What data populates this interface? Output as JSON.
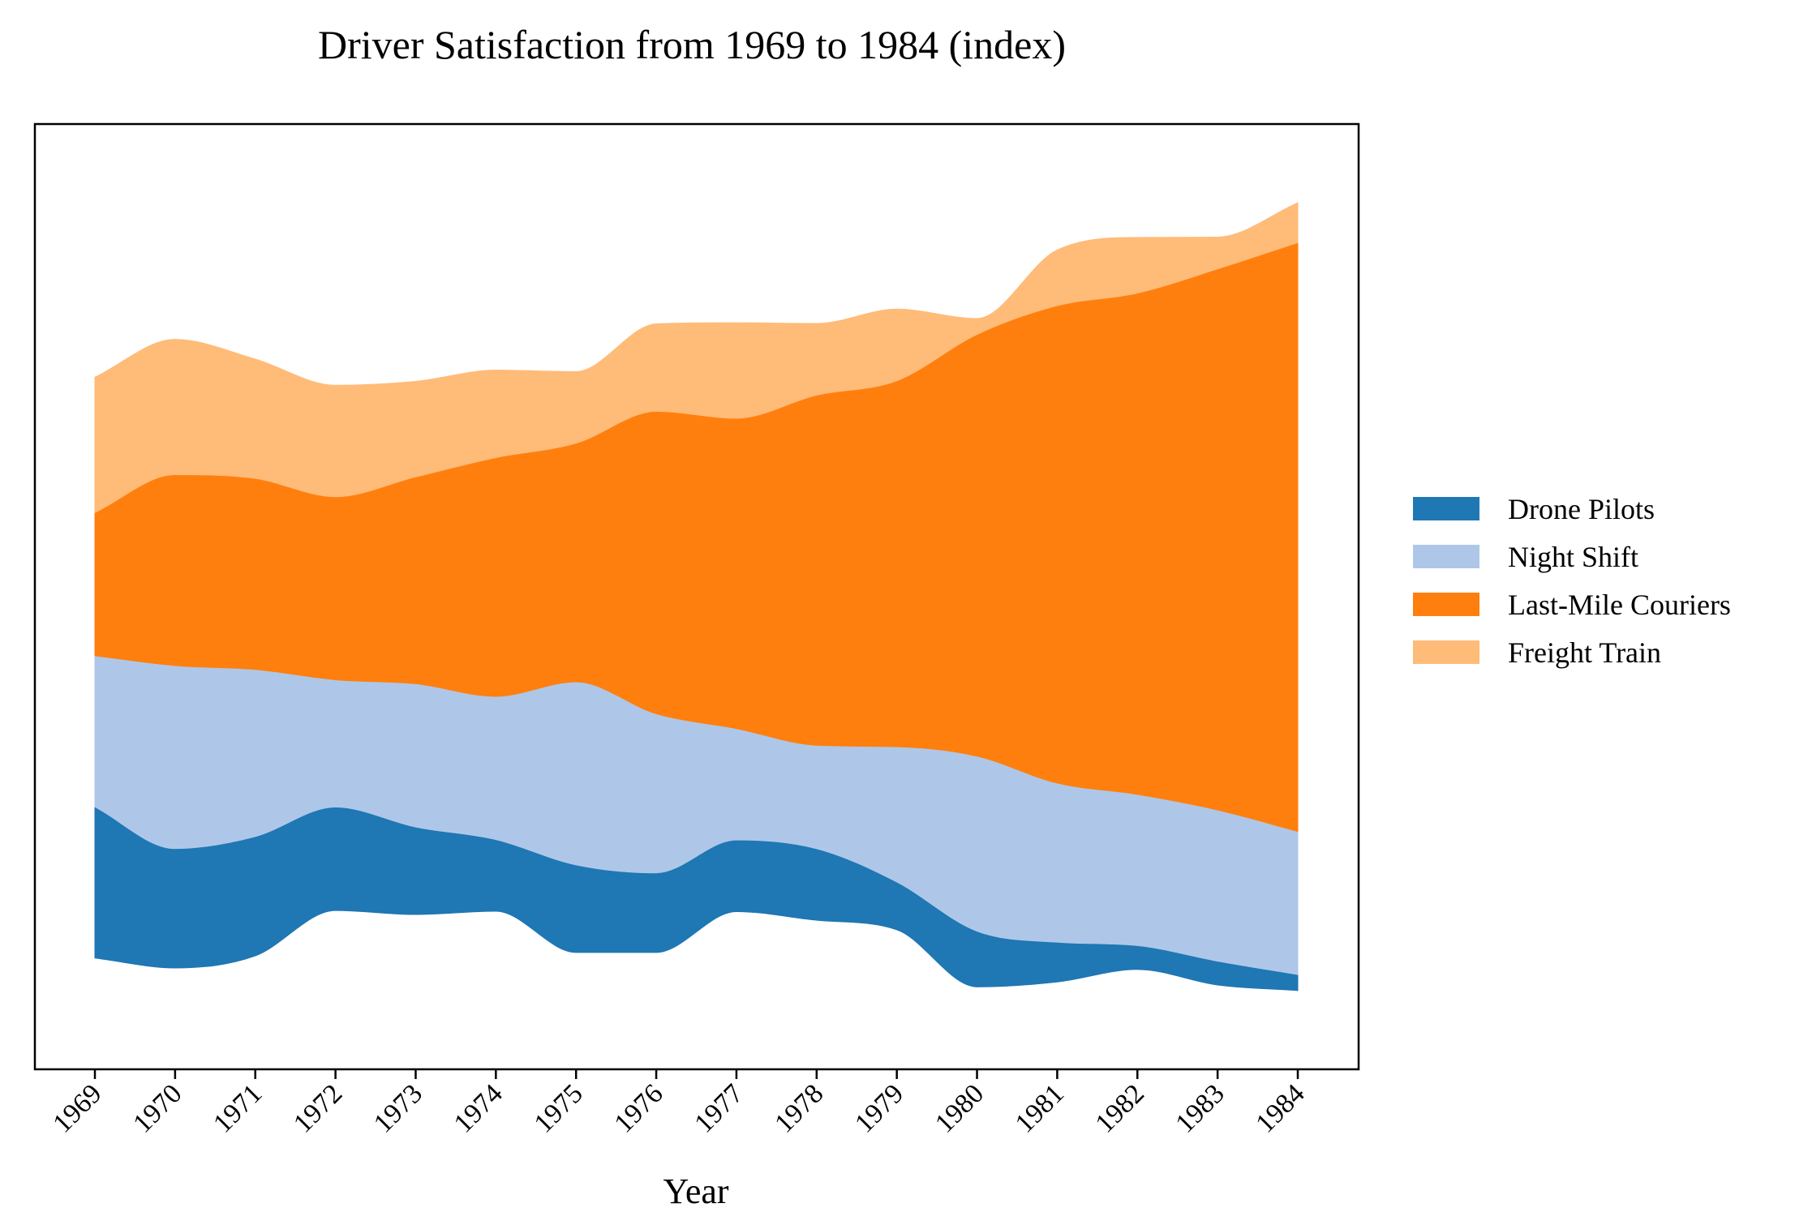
{
  "chart_data": {
    "type": "area",
    "subtype": "streamgraph",
    "title": "Driver Satisfaction from 1969 to 1984 (index)",
    "xlabel": "Year",
    "ylabel": "",
    "x": [
      "1969",
      "1970",
      "1971",
      "1972",
      "1973",
      "1974",
      "1975",
      "1976",
      "1977",
      "1978",
      "1979",
      "1980",
      "1981",
      "1982",
      "1983",
      "1984"
    ],
    "series": [
      {
        "name": "Drone Pilots",
        "color": "#1f77b4",
        "values": [
          19,
          15,
          15,
          13,
          11,
          9,
          11,
          10,
          9,
          9,
          6,
          7,
          5,
          3,
          3,
          2
        ]
      },
      {
        "name": "Night Shift",
        "color": "#aec7e8",
        "values": [
          19,
          23,
          21,
          16,
          18,
          18,
          23,
          20,
          14,
          13,
          17,
          22,
          20,
          19,
          19,
          18
        ]
      },
      {
        "name": "Last-Mile Couriers",
        "color": "#ff7f0e",
        "values": [
          18,
          24,
          24,
          23,
          26,
          30,
          30,
          38,
          39,
          44,
          46,
          53,
          60,
          63,
          68,
          74
        ]
      },
      {
        "name": "Freight Train",
        "color": "#ffbb78",
        "values": [
          17,
          17,
          15,
          14,
          12,
          11,
          9,
          11,
          12,
          9,
          9,
          2,
          7,
          7,
          4,
          5
        ]
      }
    ],
    "baseline": "wiggle",
    "legend": {
      "position": "right",
      "entries": [
        "Drone Pilots",
        "Night Shift",
        "Last-Mile Couriers",
        "Freight Train"
      ]
    },
    "yticks_visible": false,
    "grid": false
  }
}
